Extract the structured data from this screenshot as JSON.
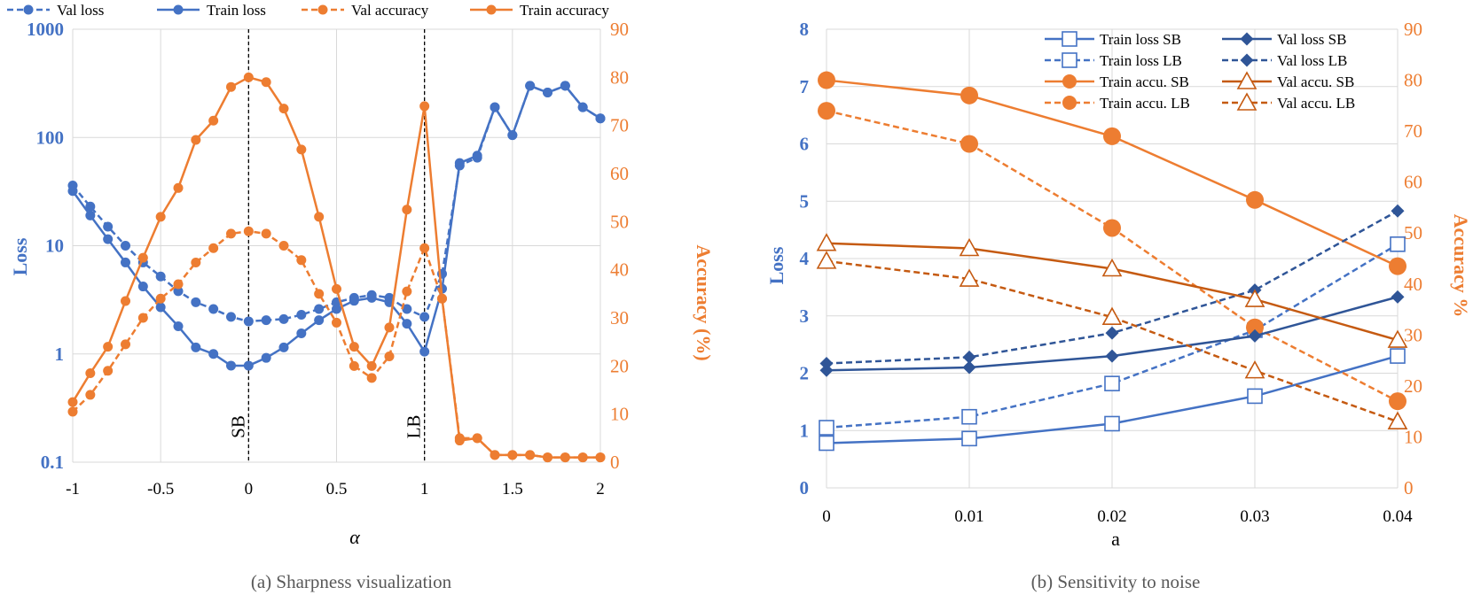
{
  "colors": {
    "blue": "#4472c4",
    "darkblue": "#2f5597",
    "orange": "#ed7d31",
    "darkorange": "#c55a11"
  },
  "chart_data": [
    {
      "type": "line",
      "title": "(a) Sharpness visualization",
      "xlabel": "α",
      "ylabel_left": "Loss",
      "ylabel_right": "Accuracy (%)",
      "xlim": [
        -1,
        2
      ],
      "ylim_left": [
        0.1,
        1000
      ],
      "ylim_right": [
        0,
        90
      ],
      "y_left_scale": "log",
      "x_ticks": [
        "-1",
        "-0.5",
        "0",
        "0.5",
        "1",
        "1.5",
        "2"
      ],
      "y_left_ticks": [
        "0.1",
        "1",
        "10",
        "100",
        "1000"
      ],
      "y_right_ticks": [
        "0",
        "10",
        "20",
        "30",
        "40",
        "50",
        "60",
        "70",
        "80",
        "90"
      ],
      "legend": [
        "Val loss",
        "Train loss",
        "Val accuracy",
        "Train accuracy"
      ],
      "legend_position": "top",
      "annotations": [
        {
          "x": 0,
          "text": "SB"
        },
        {
          "x": 1,
          "text": "LB"
        }
      ],
      "x": [
        -1,
        -0.9,
        -0.8,
        -0.7,
        -0.6,
        -0.5,
        -0.4,
        -0.3,
        -0.2,
        -0.1,
        0,
        0.1,
        0.2,
        0.3,
        0.4,
        0.5,
        0.6,
        0.7,
        0.8,
        0.9,
        1,
        1.1,
        1.2,
        1.3,
        1.4,
        1.5,
        1.6,
        1.7,
        1.8,
        1.9,
        2
      ],
      "series": [
        {
          "name": "Val loss",
          "axis": "left",
          "style": "dashed",
          "color": "#4472c4",
          "values": [
            36,
            23,
            15,
            10,
            7,
            5.2,
            3.8,
            3.0,
            2.6,
            2.2,
            2.0,
            2.05,
            2.1,
            2.3,
            2.6,
            3.0,
            3.3,
            3.5,
            3.3,
            2.6,
            2.2,
            5.5,
            55,
            65,
            190,
            105,
            300,
            260,
            300,
            190,
            150
          ]
        },
        {
          "name": "Train loss",
          "axis": "left",
          "style": "solid",
          "color": "#4472c4",
          "values": [
            32,
            19,
            11.5,
            7,
            4.2,
            2.7,
            1.8,
            1.15,
            1.0,
            0.78,
            0.78,
            0.92,
            1.15,
            1.55,
            2.05,
            2.6,
            3.1,
            3.3,
            3.0,
            1.9,
            1.05,
            4.0,
            58,
            68,
            190,
            105,
            300,
            260,
            300,
            190,
            150
          ]
        },
        {
          "name": "Val accuracy",
          "axis": "right",
          "style": "dashed",
          "color": "#ed7d31",
          "values": [
            10.5,
            14,
            19,
            24.5,
            30,
            34,
            37,
            41.5,
            44.5,
            47.5,
            48,
            47.5,
            45,
            42,
            35,
            29,
            20,
            17.5,
            22,
            35.5,
            44.5,
            34,
            5,
            5,
            1.5,
            1.5,
            1.5,
            1,
            1,
            1,
            1
          ]
        },
        {
          "name": "Train accuracy",
          "axis": "right",
          "style": "solid",
          "color": "#ed7d31",
          "values": [
            12.5,
            18.5,
            24,
            33.5,
            42.5,
            51,
            57,
            67,
            71,
            78,
            80,
            79,
            73.5,
            65,
            51,
            36,
            24,
            20,
            28,
            52.5,
            74,
            34,
            4.5,
            5,
            1.5,
            1.5,
            1.5,
            1,
            1,
            1,
            1
          ]
        }
      ]
    },
    {
      "type": "line",
      "title": "(b) Sensitivity to noise",
      "xlabel": "a",
      "ylabel_left": "Loss",
      "ylabel_right": "Accuracy %",
      "x": [
        0,
        0.01,
        0.02,
        0.03,
        0.04
      ],
      "x_ticks": [
        "0",
        "0.01",
        "0.02",
        "0.03",
        "0.04"
      ],
      "ylim_left": [
        0,
        8
      ],
      "ylim_right": [
        0,
        90
      ],
      "y_left_ticks": [
        "0",
        "1",
        "2",
        "3",
        "4",
        "5",
        "6",
        "7",
        "8"
      ],
      "y_right_ticks": [
        "0",
        "10",
        "20",
        "30",
        "40",
        "50",
        "60",
        "70",
        "80",
        "90"
      ],
      "legend": [
        "Train loss SB",
        "Val loss SB",
        "Train loss LB",
        "Val loss LB",
        "Train accu. SB",
        "Val accu. SB",
        "Train accu. LB",
        "Val accu. LB"
      ],
      "legend_position": "top-right",
      "series": [
        {
          "name": "Train loss SB",
          "axis": "left",
          "style": "solid",
          "marker": "open-square",
          "color": "#4472c4",
          "values": [
            0.78,
            0.86,
            1.12,
            1.6,
            2.3
          ]
        },
        {
          "name": "Train loss LB",
          "axis": "left",
          "style": "dashed",
          "marker": "open-square",
          "color": "#4472c4",
          "values": [
            1.05,
            1.24,
            1.82,
            2.75,
            4.25
          ]
        },
        {
          "name": "Train accu. SB",
          "axis": "right",
          "style": "solid",
          "marker": "circle",
          "color": "#ed7d31",
          "values": [
            80,
            77,
            69,
            56.5,
            43.5
          ]
        },
        {
          "name": "Train accu. LB",
          "axis": "right",
          "style": "dashed",
          "marker": "circle",
          "color": "#ed7d31",
          "values": [
            74,
            67.5,
            51,
            31.5,
            17
          ]
        },
        {
          "name": "Val loss SB",
          "axis": "left",
          "style": "solid",
          "marker": "diamond",
          "color": "#2f5597",
          "values": [
            2.05,
            2.1,
            2.3,
            2.65,
            3.33
          ]
        },
        {
          "name": "Val loss LB",
          "axis": "left",
          "style": "dashed",
          "marker": "diamond",
          "color": "#2f5597",
          "values": [
            2.17,
            2.28,
            2.7,
            3.45,
            4.83
          ]
        },
        {
          "name": "Val accu. SB",
          "axis": "right",
          "style": "solid",
          "marker": "open-triangle",
          "color": "#c55a11",
          "values": [
            48,
            47,
            43,
            37,
            29
          ]
        },
        {
          "name": "Val accu. LB",
          "axis": "right",
          "style": "dashed",
          "marker": "open-triangle",
          "color": "#c55a11",
          "values": [
            44.5,
            41,
            33.5,
            23,
            13
          ]
        }
      ]
    }
  ]
}
